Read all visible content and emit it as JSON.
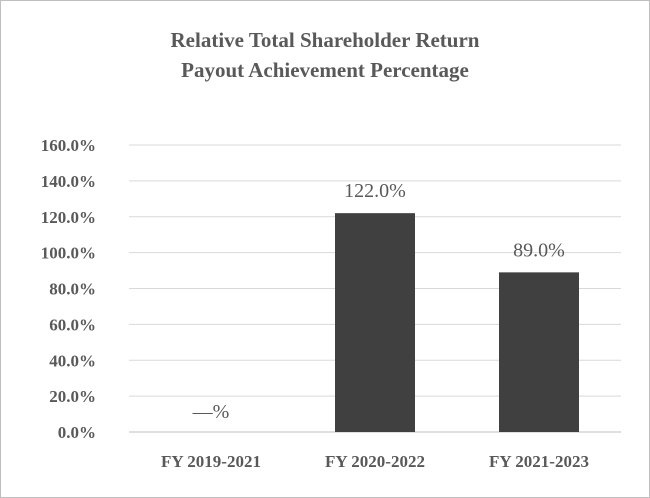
{
  "chart_data": {
    "type": "bar",
    "title": "Relative Total Shareholder Return",
    "subtitle": "Payout Achievement Percentage",
    "categories": [
      "FY 2019-2021",
      "FY 2020-2022",
      "FY 2021-2023"
    ],
    "values": [
      null,
      122.0,
      89.0
    ],
    "data_labels": [
      "—%",
      "122.0%",
      "89.0%"
    ],
    "ylim": [
      0,
      160
    ],
    "yticks": [
      "0.0%",
      "20.0%",
      "40.0%",
      "60.0%",
      "80.0%",
      "100.0%",
      "120.0%",
      "140.0%",
      "160.0%"
    ],
    "xlabel": "",
    "ylabel": "",
    "grid": true,
    "legend": "none",
    "bar_color": "#404040",
    "grid_color": "#d9d9d9"
  }
}
